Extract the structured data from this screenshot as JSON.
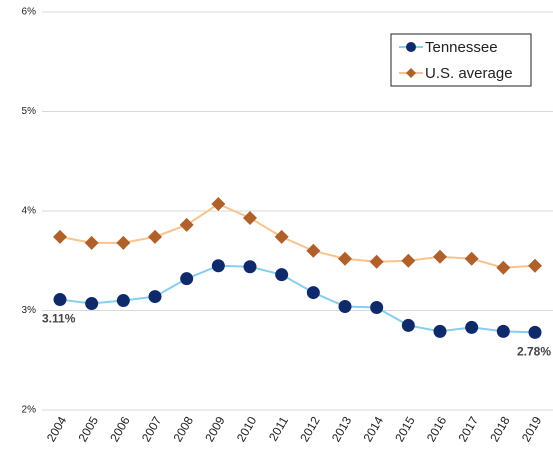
{
  "chart_data": {
    "type": "line",
    "categories": [
      "2004",
      "2005",
      "2006",
      "2007",
      "2008",
      "2009",
      "2010",
      "2011",
      "2012",
      "2013",
      "2014",
      "2015",
      "2016",
      "2017",
      "2018",
      "2019"
    ],
    "series": [
      {
        "name": "Tennessee",
        "color": "#0f2a6b",
        "line_color": "#86cdf0",
        "marker": "circle",
        "values": [
          3.11,
          3.07,
          3.1,
          3.14,
          3.32,
          3.45,
          3.44,
          3.36,
          3.18,
          3.04,
          3.03,
          2.85,
          2.79,
          2.83,
          2.79,
          2.78
        ],
        "value_labels": [
          "3.11%",
          null,
          null,
          null,
          null,
          null,
          null,
          null,
          null,
          null,
          null,
          null,
          null,
          null,
          null,
          "2.78%"
        ]
      },
      {
        "name": "U.S. average",
        "color": "#b0602a",
        "line_color": "#f7c48e",
        "marker": "diamond",
        "values": [
          3.74,
          3.68,
          3.68,
          3.74,
          3.86,
          4.07,
          3.93,
          3.74,
          3.6,
          3.52,
          3.49,
          3.5,
          3.54,
          3.52,
          3.43,
          3.45
        ]
      }
    ],
    "ylim": [
      2,
      6
    ],
    "yticks": [
      {
        "value": 2,
        "label": "2%"
      },
      {
        "value": 3,
        "label": "3%"
      },
      {
        "value": 4,
        "label": "4%"
      },
      {
        "value": 5,
        "label": "5%"
      },
      {
        "value": 6,
        "label": "6%"
      }
    ],
    "grid": true,
    "legend": "top-right"
  }
}
